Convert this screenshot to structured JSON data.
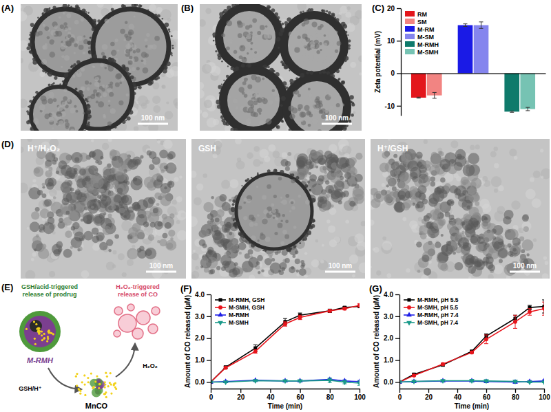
{
  "figure": {
    "panel_A": {
      "label": "(A)",
      "scale_bar": "100 nm"
    },
    "panel_B": {
      "label": "(B)",
      "scale_bar": "100 nm"
    },
    "panel_D": {
      "label": "(D)",
      "images": [
        {
          "caption": "H⁺/H₂O₂",
          "scale_bar": "100 nm"
        },
        {
          "caption": "GSH",
          "scale_bar": "100 nm"
        },
        {
          "caption": "H⁺/GSH",
          "scale_bar": "100 nm"
        }
      ]
    },
    "panel_E": {
      "label": "(E)",
      "left_caption": [
        "GSH/acid-triggered",
        "release of prodrug"
      ],
      "right_caption": [
        "H₂O₂-triggered",
        "release of CO"
      ],
      "particle": "M-RMH",
      "product": "MnCO",
      "arrow_1": "GSH/H⁺",
      "arrow_2": "H₂O₂"
    }
  },
  "chart_data": [
    {
      "type": "bar",
      "title": "(C)",
      "y_label": "Zeta potential (mV)",
      "categories": [
        null,
        null,
        null
      ],
      "series": [
        {
          "name": "RM",
          "color": "#e3161c",
          "values": [
            -7.5,
            null,
            null
          ],
          "errors": [
            0.15,
            null,
            null
          ]
        },
        {
          "name": "SM",
          "color": "#f28482",
          "values": [
            -6.8,
            null,
            null
          ],
          "errors": [
            0.9,
            null,
            null
          ]
        },
        {
          "name": "M-RM",
          "color": "#1a1ae6",
          "values": [
            null,
            14.8,
            null
          ],
          "errors": [
            null,
            0.4,
            null
          ]
        },
        {
          "name": "M-SM",
          "color": "#8585ee",
          "values": [
            null,
            14.8,
            null
          ],
          "errors": [
            null,
            1.0,
            null
          ]
        },
        {
          "name": "M-RMH",
          "color": "#0f7a6b",
          "values": [
            null,
            null,
            -11.8
          ],
          "errors": [
            null,
            null,
            0.2
          ]
        },
        {
          "name": "M-SMH",
          "color": "#76c3b3",
          "values": [
            null,
            null,
            -11.0
          ],
          "errors": [
            null,
            null,
            0.5
          ]
        }
      ],
      "ylim": [
        -13,
        20
      ],
      "yticks": [
        -10,
        0,
        10,
        20
      ],
      "legend": "upper-left",
      "tick_labels": "y"
    },
    {
      "type": "line",
      "title": "(F)",
      "x_label": "Time (min)",
      "y_label": "Amount of CO released (μM)",
      "x": [
        0,
        10,
        30,
        50,
        60,
        80,
        90,
        100
      ],
      "series": [
        {
          "name": "M-RMH, GSH",
          "color": "#000000",
          "marker": "square",
          "values": [
            0,
            0.68,
            1.55,
            2.75,
            3.05,
            3.25,
            3.4,
            3.45
          ],
          "errors": [
            0.02,
            0.05,
            0.15,
            0.15,
            0.1,
            0.08,
            0.05,
            0.05
          ]
        },
        {
          "name": "M-SMH, GSH",
          "color": "#e8141b",
          "marker": "circle",
          "values": [
            0,
            0.65,
            1.4,
            2.65,
            2.95,
            3.25,
            3.35,
            3.5
          ],
          "errors": [
            0.02,
            0.04,
            0.08,
            0.1,
            0.1,
            0.06,
            0.06,
            0.08
          ]
        },
        {
          "name": "M-RMH",
          "color": "#1f1fe6",
          "marker": "triangle",
          "values": [
            0,
            0.02,
            0.08,
            0.05,
            0.05,
            0.12,
            0.05,
            0.02
          ],
          "errors": [
            0.02,
            0.03,
            0.02,
            0.03,
            0.03,
            0.05,
            0.05,
            0.05
          ]
        },
        {
          "name": "M-SMH",
          "color": "#1a9a8a",
          "marker": "triangle-down",
          "values": [
            0,
            0,
            0.06,
            0.05,
            0.05,
            0.08,
            0,
            -0.05
          ],
          "errors": [
            0.02,
            0.02,
            0.03,
            0.02,
            0.03,
            0.1,
            0.08,
            0.1
          ]
        }
      ],
      "xlim": [
        0,
        100
      ],
      "xticks": [
        0,
        20,
        40,
        60,
        80,
        100
      ],
      "ylim": [
        -0.3,
        4.0
      ],
      "yticks": [
        {
          "value": 0,
          "label": "0.0"
        },
        {
          "value": 1,
          "label": "1.0"
        },
        {
          "value": 2,
          "label": "2.0"
        },
        {
          "value": 3,
          "label": "3.0"
        },
        {
          "value": 4,
          "label": "4.0"
        }
      ],
      "legend": "upper-left"
    },
    {
      "type": "line",
      "title": "(G)",
      "x_label": "Time (min)",
      "y_label": "Amount of CO released (μM)",
      "x": [
        0,
        10,
        30,
        50,
        60,
        80,
        90,
        100
      ],
      "series": [
        {
          "name": "M-RMH, pH 5.5",
          "color": "#000000",
          "marker": "square",
          "values": [
            0,
            0.35,
            0.78,
            1.4,
            2.1,
            2.9,
            3.4,
            3.45
          ],
          "errors": [
            0.02,
            0.05,
            0.05,
            0.05,
            0.1,
            0.15,
            0.1,
            0.3
          ]
        },
        {
          "name": "M-SMH, pH 5.5",
          "color": "#e8141b",
          "marker": "circle",
          "values": [
            0,
            0.3,
            0.82,
            1.35,
            1.95,
            2.75,
            3.2,
            3.35
          ],
          "errors": [
            0.02,
            0.04,
            0.05,
            0.05,
            0.2,
            0.3,
            0.15,
            0.3
          ]
        },
        {
          "name": "M-RMH, pH 7.4",
          "color": "#1f1fe6",
          "marker": "triangle",
          "values": [
            0,
            0.02,
            0.05,
            0.05,
            0.02,
            0,
            0.02,
            0.05
          ],
          "errors": [
            0.02,
            0.03,
            0.02,
            0.05,
            0.05,
            0.05,
            0.05,
            0.05
          ]
        },
        {
          "name": "M-SMH, pH 7.4",
          "color": "#1a9a8a",
          "marker": "triangle-down",
          "values": [
            0,
            0.03,
            0.06,
            0.06,
            0.05,
            0.03,
            0,
            0
          ],
          "errors": [
            0.02,
            0.02,
            0.02,
            0.05,
            0.05,
            0.05,
            0.03,
            0.03
          ]
        }
      ],
      "xlim": [
        0,
        100
      ],
      "xticks": [
        0,
        20,
        40,
        60,
        80,
        100
      ],
      "ylim": [
        -0.3,
        4.0
      ],
      "yticks": [
        {
          "value": 0,
          "label": "0.0"
        },
        {
          "value": 1,
          "label": "1.0"
        },
        {
          "value": 2,
          "label": "2.0"
        },
        {
          "value": 3,
          "label": "3.0"
        },
        {
          "value": 4,
          "label": "4.0"
        }
      ],
      "legend": "upper-left"
    }
  ]
}
